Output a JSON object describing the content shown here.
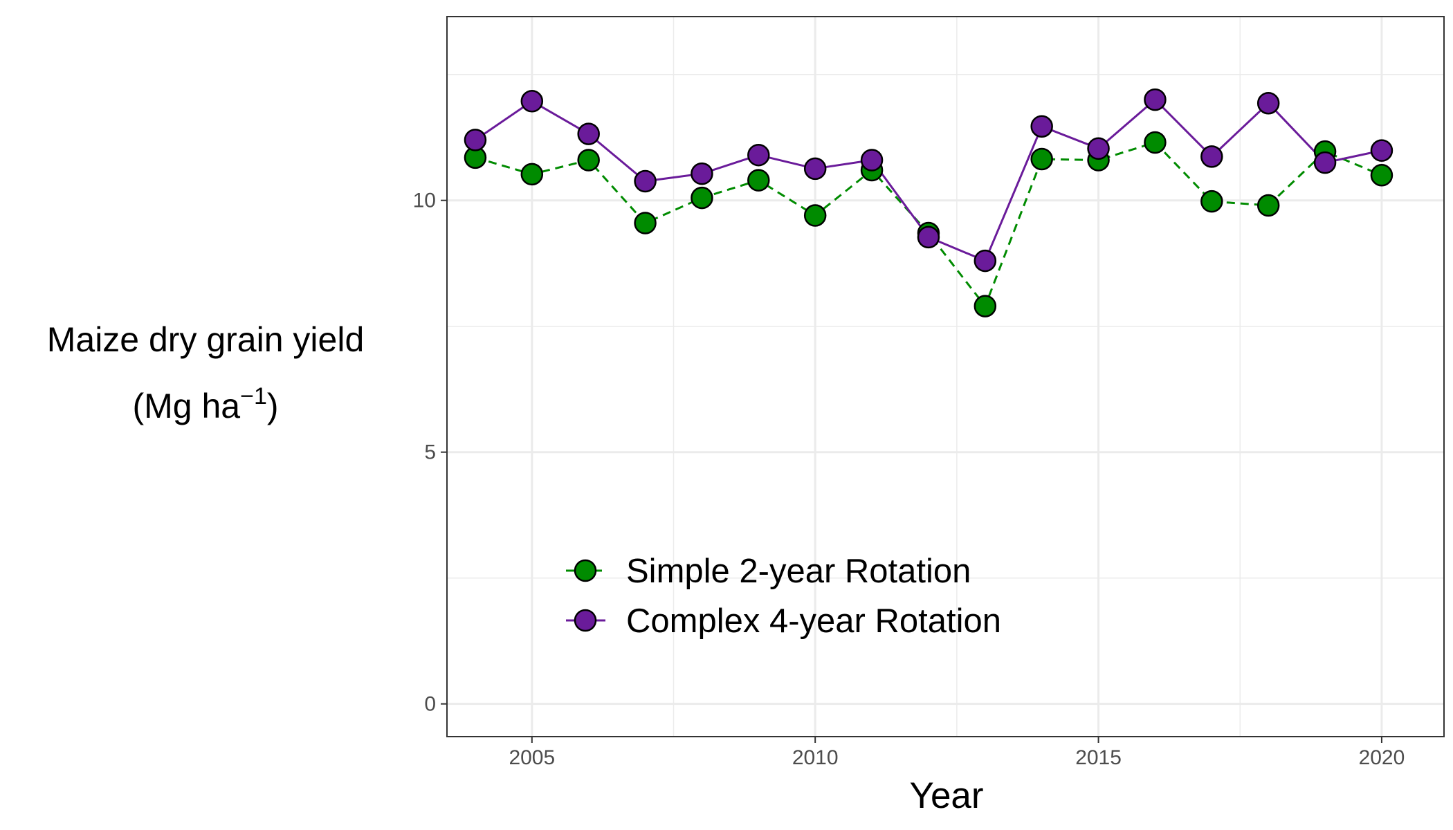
{
  "chart_data": {
    "type": "line",
    "xlabel": "Year",
    "ylabel": {
      "line1": "Maize dry grain yield",
      "line2_prefix": "(Mg  ha",
      "line2_sup": "−1",
      "line2_suffix": ")"
    },
    "xlim": [
      2003.5,
      2021.1
    ],
    "ylim": [
      -0.65,
      13.65
    ],
    "x_ticks": [
      2005,
      2010,
      2015,
      2020
    ],
    "x_minor": [
      2007.5,
      2012.5,
      2017.5
    ],
    "y_ticks": [
      0,
      5,
      10
    ],
    "y_minor": [
      2.5,
      7.5,
      12.5
    ],
    "grid": true,
    "legend_position": "bottom-left inside",
    "x": [
      2004,
      2005,
      2006,
      2007,
      2008,
      2009,
      2010,
      2011,
      2012,
      2013,
      2014,
      2015,
      2016,
      2017,
      2018,
      2019,
      2020
    ],
    "series": [
      {
        "name": "Simple 2-year Rotation",
        "color": "#008B00",
        "dash": "dashed",
        "values": [
          10.85,
          10.52,
          10.8,
          9.55,
          10.05,
          10.4,
          9.7,
          10.6,
          9.35,
          7.9,
          10.82,
          10.8,
          11.15,
          9.98,
          9.9,
          10.97,
          10.5
        ]
      },
      {
        "name": "Complex 4-year Rotation",
        "color": "#6A1B9A",
        "dash": "solid",
        "values": [
          11.2,
          11.97,
          11.32,
          10.38,
          10.53,
          10.9,
          10.63,
          10.8,
          9.27,
          8.8,
          11.47,
          11.03,
          12.0,
          10.87,
          11.93,
          10.75,
          10.99
        ]
      }
    ]
  }
}
